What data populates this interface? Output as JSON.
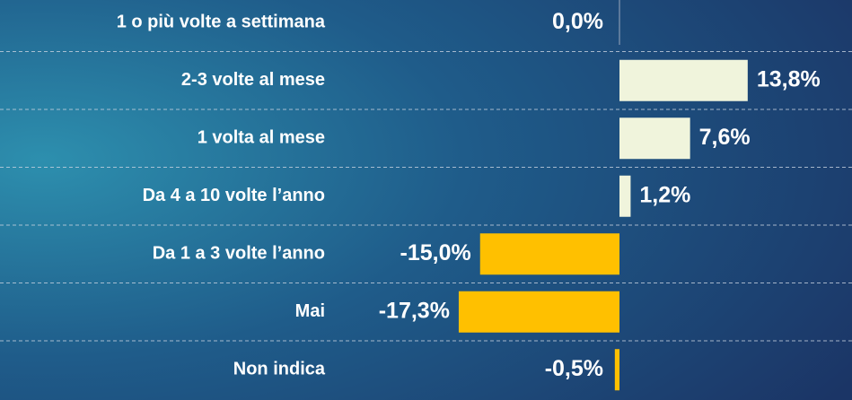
{
  "chart_data": {
    "type": "bar",
    "categories": [
      "1 o più volte a settimana",
      "2-3 volte al mese",
      "1 volta al mese",
      "Da 4 a 10 volte l’anno",
      "Da 1 a 3 volte l’anno",
      "Mai",
      "Non indica"
    ],
    "values": [
      0.0,
      13.8,
      7.6,
      1.2,
      -15.0,
      -17.3,
      -0.5
    ],
    "value_labels": [
      "0,0%",
      "13,8%",
      "7,6%",
      "1,2%",
      "-15,0%",
      "-17,3%",
      "-0,5%"
    ],
    "colors": [
      "#f0f4dc",
      "#f0f4dc",
      "#f0f4dc",
      "#f0f4dc",
      "#ffc000",
      "#ffc000",
      "#ffc000"
    ]
  }
}
